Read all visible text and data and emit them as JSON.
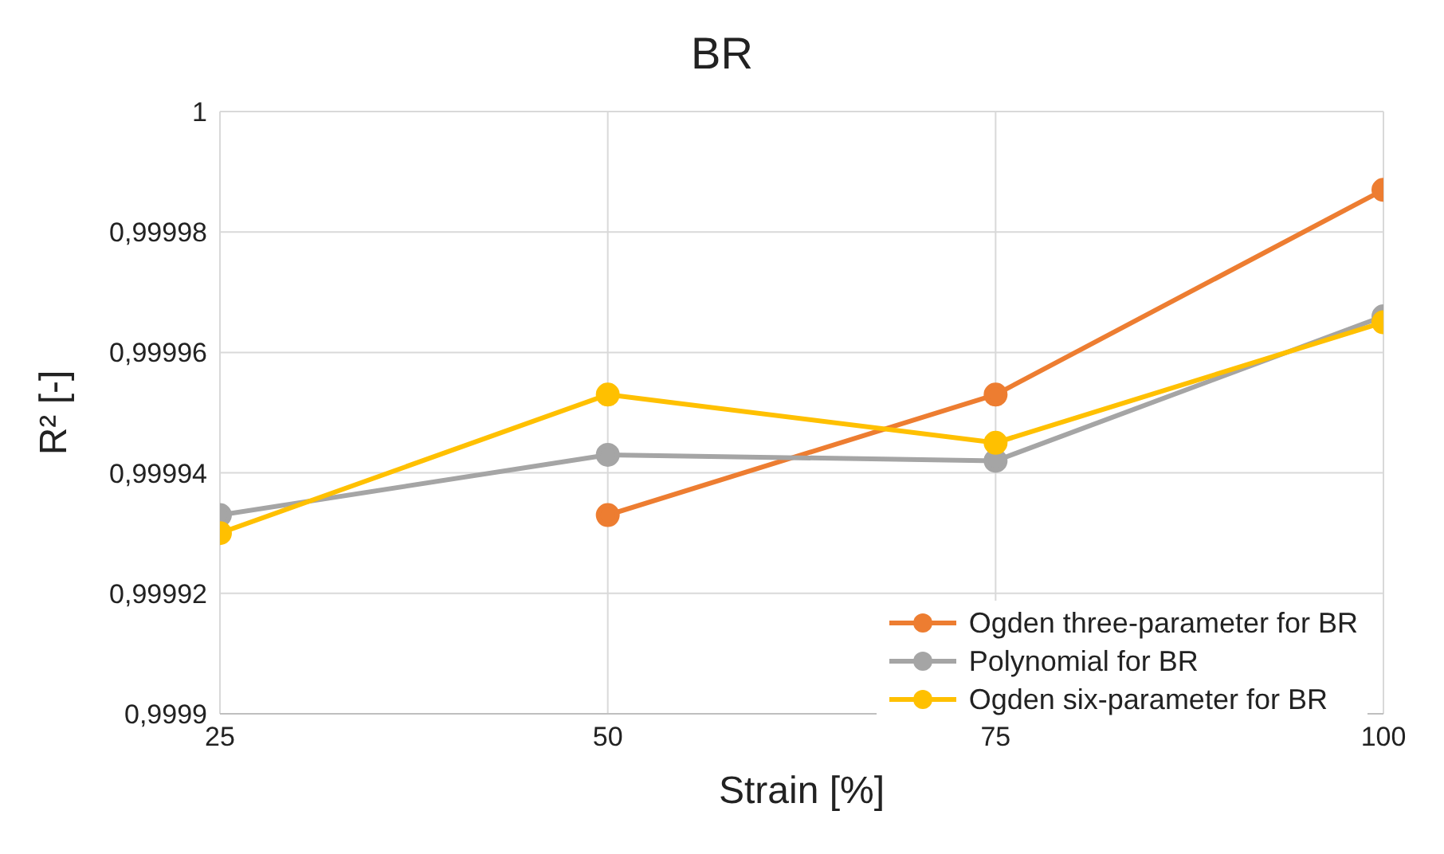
{
  "chart_data": {
    "type": "line",
    "title": "BR",
    "xlabel": "Strain [%]",
    "ylabel": "R² [-]",
    "x": [
      25,
      50,
      75,
      100
    ],
    "xlim": [
      25,
      100
    ],
    "xticks": [
      25,
      50,
      75,
      100
    ],
    "ylim": [
      0.9999,
      1
    ],
    "yticks": [
      {
        "value": 0.9999,
        "label": "0,9999"
      },
      {
        "value": 0.99992,
        "label": "0,99992"
      },
      {
        "value": 0.99994,
        "label": "0,99994"
      },
      {
        "value": 0.99996,
        "label": "0,99996"
      },
      {
        "value": 0.99998,
        "label": "0,99998"
      },
      {
        "value": 1,
        "label": "1"
      }
    ],
    "series": [
      {
        "name": "Ogden three-parameter for BR",
        "color": "#ed7d31",
        "values": [
          null,
          0.999933,
          0.999953,
          0.999987
        ]
      },
      {
        "name": "Polynomial for BR",
        "color": "#a5a5a5",
        "values": [
          0.999933,
          0.999943,
          0.999942,
          0.999966
        ]
      },
      {
        "name": "Ogden six-parameter for BR",
        "color": "#ffc000",
        "values": [
          0.99993,
          0.999953,
          0.999945,
          0.999965
        ]
      }
    ],
    "grid": true,
    "legend": "bottom right",
    "marker": "circle",
    "line_style": "solid"
  }
}
